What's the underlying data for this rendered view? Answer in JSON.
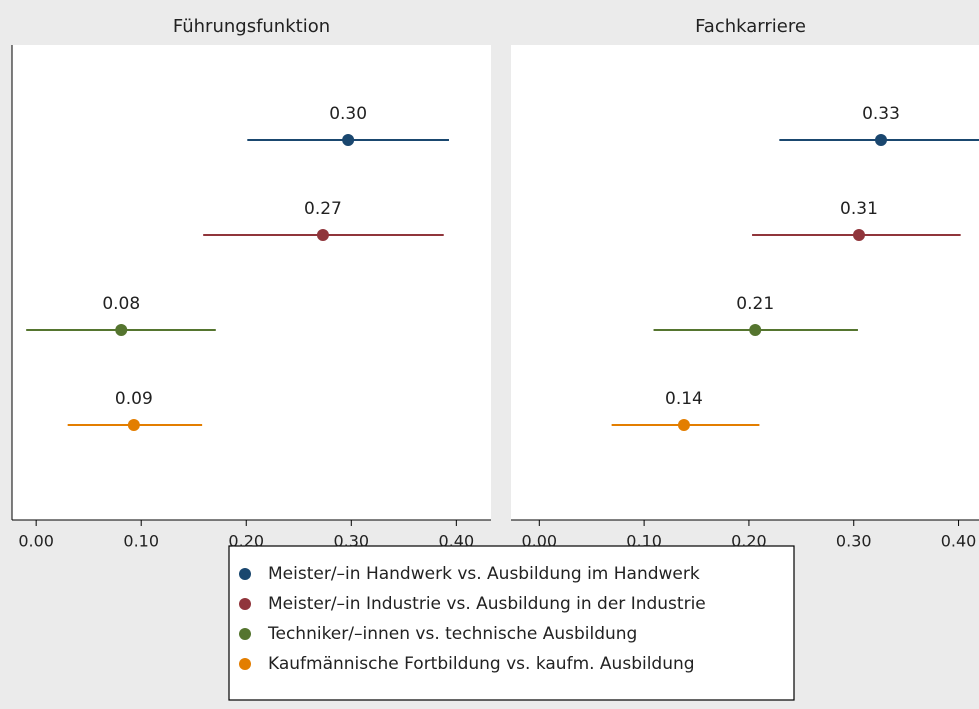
{
  "chart_data": [
    {
      "type": "errorbar",
      "title": "Führungsfunktion",
      "values": [
        0.297,
        0.273,
        0.081,
        0.093
      ],
      "value_labels": [
        "0.30",
        "0.27",
        "0.08",
        "0.09"
      ],
      "ci_low": [
        0.201,
        0.159,
        -0.0095,
        0.03
      ],
      "ci_high": [
        0.393,
        0.388,
        0.171,
        0.158
      ],
      "xlim": [
        -0.023,
        0.433
      ],
      "xticks": [
        {
          "value": 0,
          "label": "0.00"
        },
        {
          "value": 0.1,
          "label": "0.10"
        },
        {
          "value": 0.2,
          "label": "0.20"
        },
        {
          "value": 0.3,
          "label": "0.30"
        },
        {
          "value": 0.4,
          "label": "0.40"
        }
      ]
    },
    {
      "type": "errorbar",
      "title": "Fachkarriere",
      "values": [
        0.326,
        0.305,
        0.206,
        0.138
      ],
      "value_labels": [
        "0.33",
        "0.31",
        "0.21",
        "0.14"
      ],
      "ci_low": [
        0.229,
        0.203,
        0.109,
        0.069
      ],
      "ci_high": [
        0.43,
        0.402,
        0.304,
        0.21
      ],
      "xlim": [
        -0.027,
        0.43
      ],
      "xticks": [
        {
          "value": 0,
          "label": "0.00"
        },
        {
          "value": 0.1,
          "label": "0.10"
        },
        {
          "value": 0.2,
          "label": "0.20"
        },
        {
          "value": 0.3,
          "label": "0.30"
        },
        {
          "value": 0.4,
          "label": "0.40"
        }
      ]
    }
  ],
  "legend": {
    "items": [
      {
        "name": "Meister/–in Handwerk vs. Ausbildung im Handwerk",
        "color": "#1a476f"
      },
      {
        "name": "Meister/–in Industrie vs. Ausbildung in der Industrie",
        "color": "#90353b"
      },
      {
        "name": "Techniker/–innen vs. technische Ausbildung",
        "color": "#55752f"
      },
      {
        "name": "Kaufmännische Fortbildung vs. kaufm. Ausbildung",
        "color": "#e37e00"
      }
    ]
  }
}
